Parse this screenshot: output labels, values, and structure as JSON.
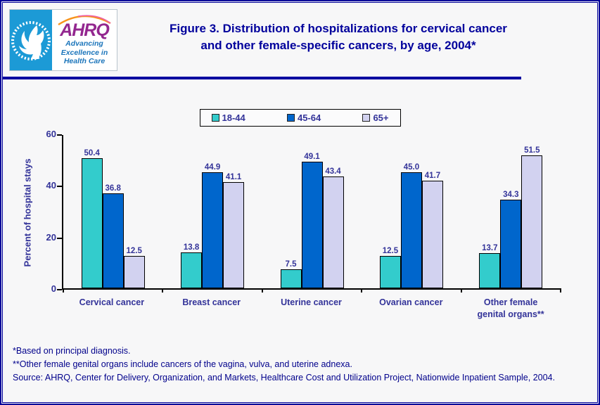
{
  "header": {
    "logo": {
      "org": "AHRQ",
      "tagline_lines": [
        "Advancing",
        "Excellence in",
        "Health Care"
      ]
    },
    "title_lines": [
      "Figure 3. Distribution of hospitalizations for cervical cancer",
      "and other female-specific cancers, by age, 2004*"
    ]
  },
  "chart_data": {
    "type": "bar",
    "categories": [
      "Cervical cancer",
      "Breast cancer",
      "Uterine cancer",
      "Ovarian cancer",
      "Other female genital organs**"
    ],
    "series": [
      {
        "name": "18-44",
        "color": "#33CCCC",
        "values": [
          50.4,
          13.8,
          7.5,
          12.5,
          13.7
        ],
        "labels": [
          "50.4",
          "13.8",
          "7.5",
          "12.5",
          "13.7"
        ]
      },
      {
        "name": "45-64",
        "color": "#0066CC",
        "values": [
          36.8,
          44.9,
          49.1,
          45.0,
          34.3
        ],
        "labels": [
          "36.8",
          "44.9",
          "49.1",
          "45.0",
          "34.3"
        ]
      },
      {
        "name": "65+",
        "color": "#D2D2F0",
        "values": [
          12.5,
          41.1,
          43.4,
          41.7,
          51.5
        ],
        "labels": [
          "12.5",
          "41.1",
          "43.4",
          "41.7",
          "51.5"
        ]
      }
    ],
    "ylabel": "Percent of hospital stays",
    "xlabel": "",
    "ylim": [
      0,
      60
    ],
    "yticks": [
      0,
      20,
      40,
      60
    ],
    "legend_position": "top-center",
    "grid": false
  },
  "footnotes": {
    "lines": [
      "*Based on principal diagnosis.",
      "**Other female genital organs include cancers of the vagina, vulva, and uterine adnexa.",
      "Source: AHRQ, Center for Delivery, Organization, and Markets, Healthcare Cost and Utilization Project, Nationwide Inpatient Sample, 2004."
    ]
  },
  "colors": {
    "title_navy": "#00009C",
    "chart_text_navy": "#333399",
    "border_navy": "#000099",
    "bar_teal": "#33CCCC",
    "bar_blue": "#0066CC",
    "bar_lavender": "#D2D2F0",
    "logo_cyan": "#1C9AD6",
    "logo_purple": "#93278F",
    "logo_blue": "#1B75BB"
  }
}
